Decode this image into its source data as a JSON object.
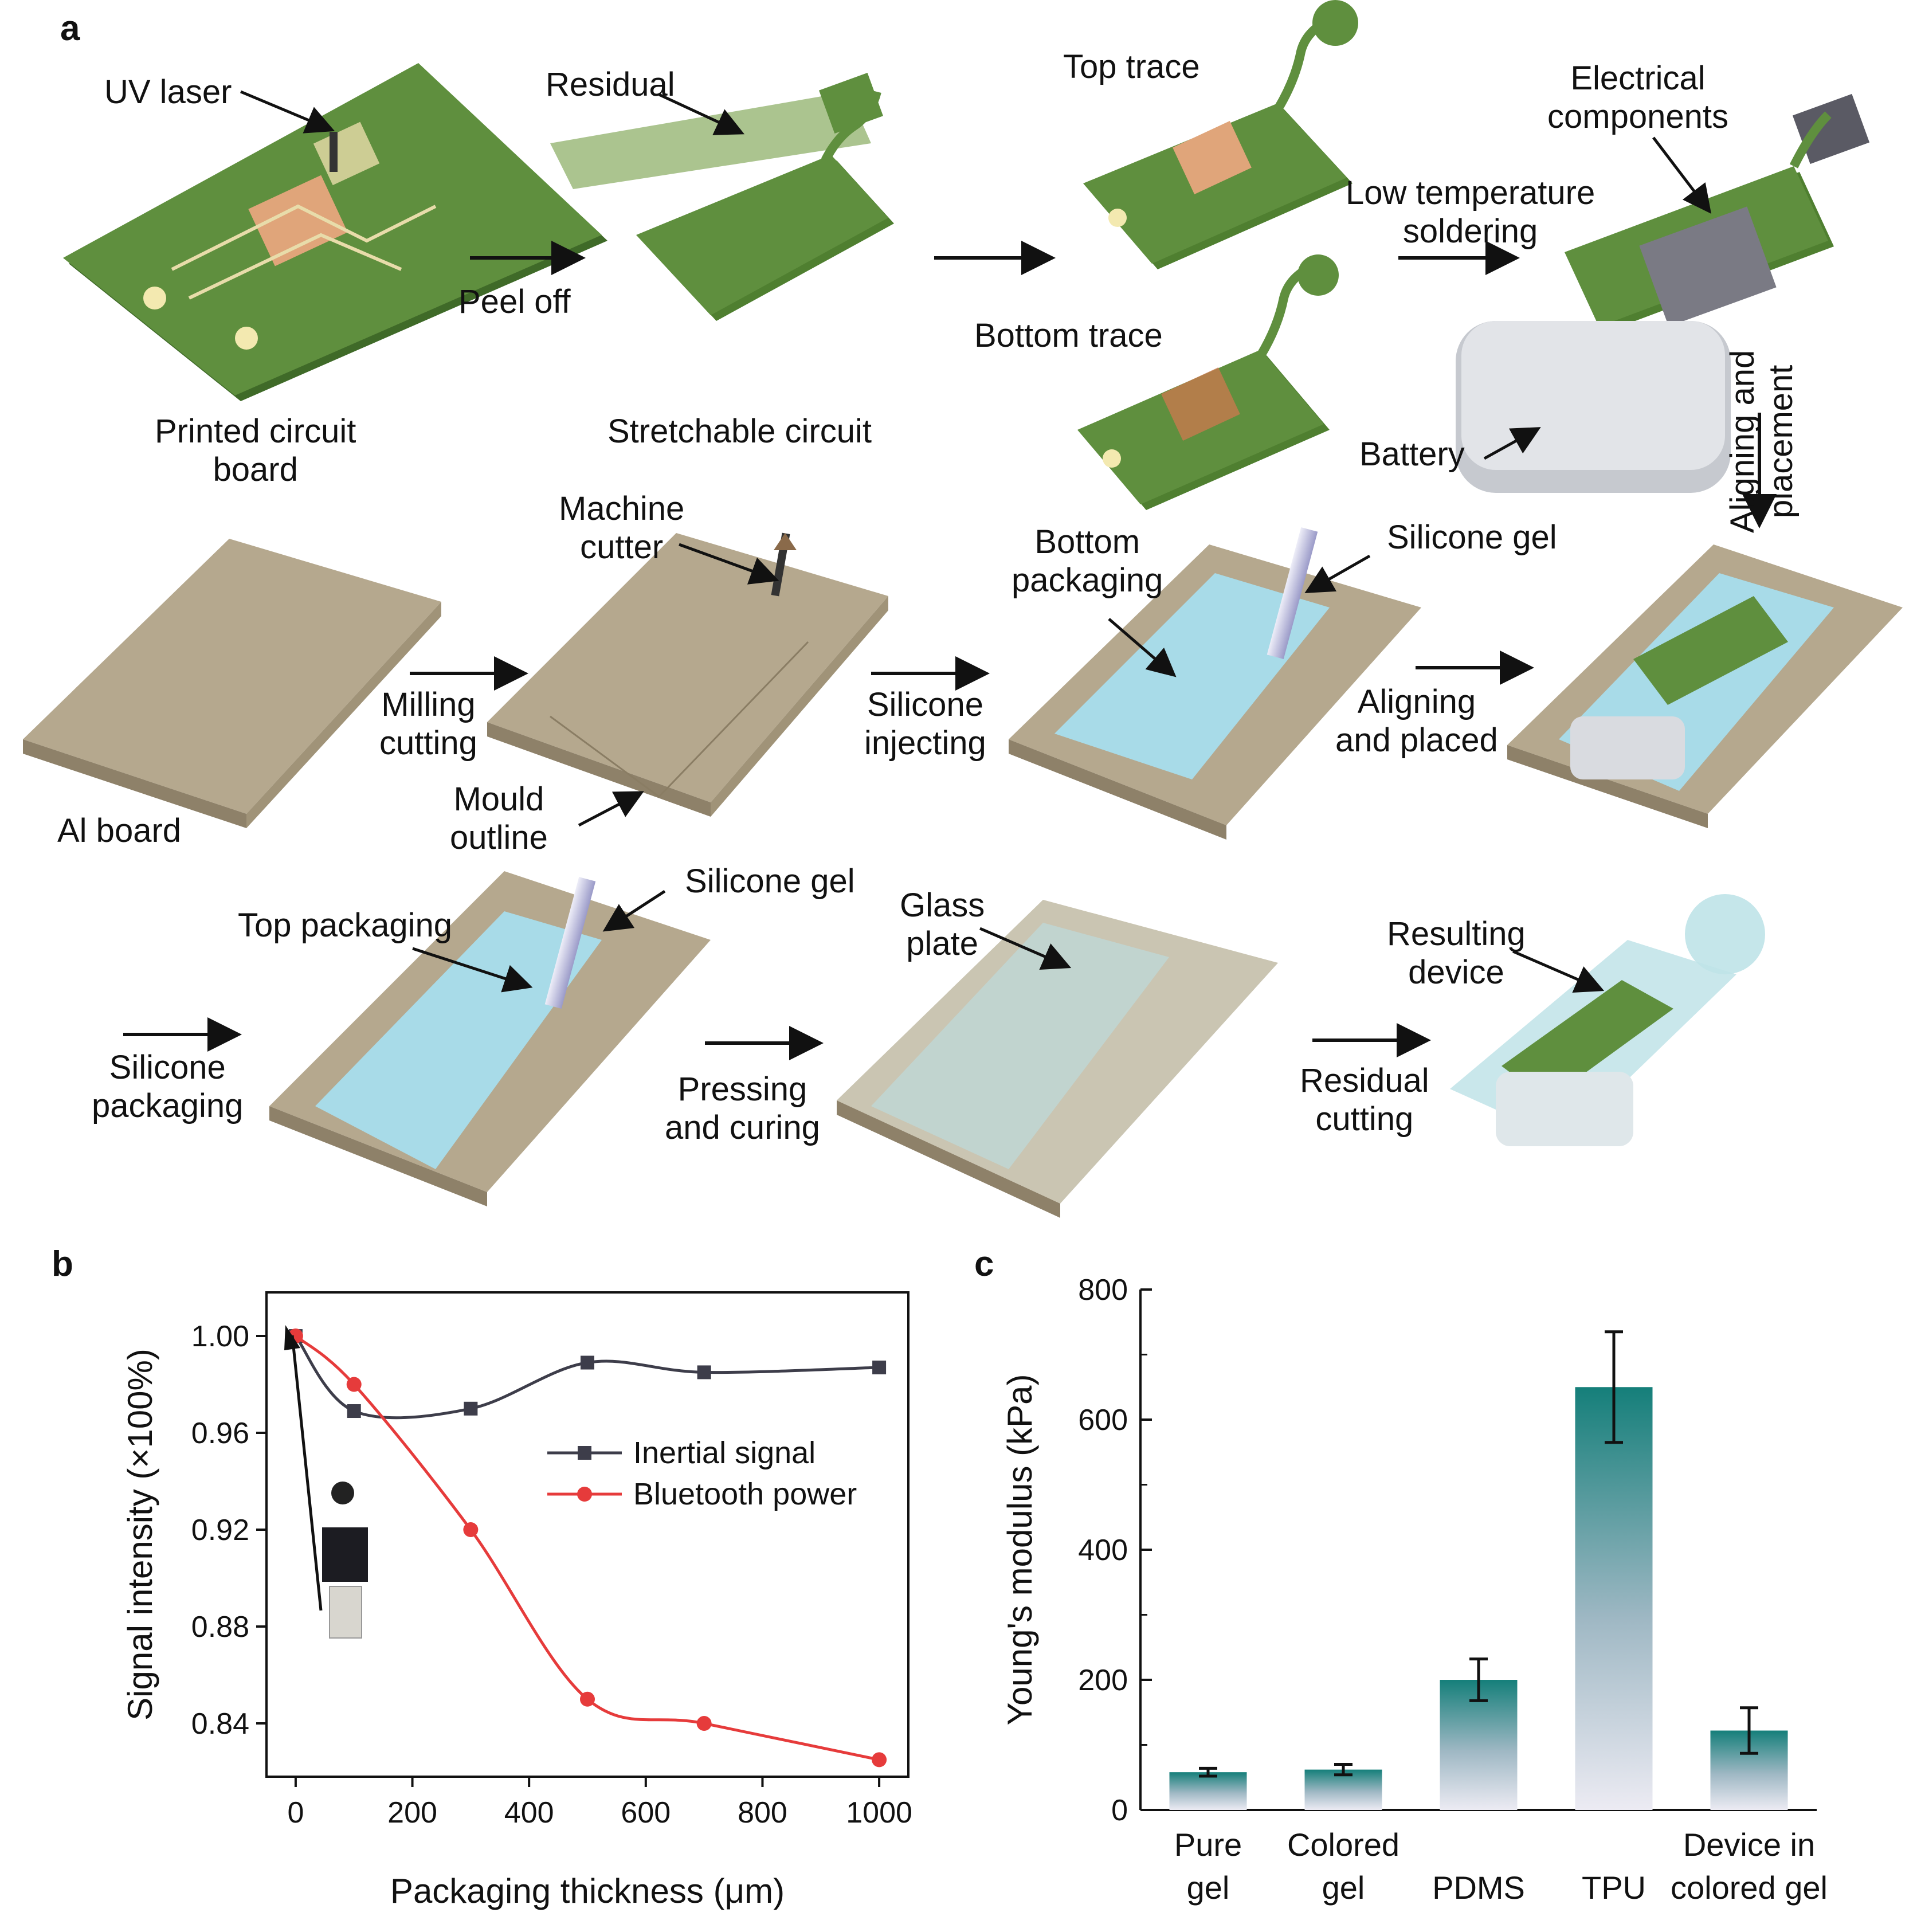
{
  "panel_a": {
    "letter": "a",
    "labels": {
      "uv_laser": "UV laser",
      "printed_circuit_board": "Printed circuit\nboard",
      "peel_off": "Peel off",
      "residual": "Residual",
      "stretchable_circuit": "Stretchable circuit",
      "top_trace": "Top trace",
      "bottom_trace": "Bottom trace",
      "electrical_components": "Electrical\ncomponents",
      "low_temperature_soldering": "Low temperature\nsoldering",
      "battery": "Battery",
      "aligning_and_placement": "Aligning and\nplacement",
      "al_board": "Al board",
      "machine_cutter": "Machine\ncutter",
      "milling_cutting": "Milling\ncutting",
      "mould_outline": "Mould\noutline",
      "bottom_packaging": "Bottom\npackaging",
      "silicone_gel_1": "Silicone gel",
      "silicone_injecting": "Silicone\ninjecting",
      "aligning_and_placed": "Aligning\nand placed",
      "top_packaging": "Top packaging",
      "silicone_gel_2": "Silicone gel",
      "silicone_packaging": "Silicone\npackaging",
      "glass_plate": "Glass\nplate",
      "pressing_and_curing": "Pressing\nand curing",
      "resulting_device": "Resulting\ndevice",
      "residual_cutting": "Residual\ncutting"
    }
  },
  "colors": {
    "pcb_green": "#5f8f3e",
    "pcb_dark": "#3f6a28",
    "copper": "#e0a57a",
    "trace": "#e8dcaa",
    "al_board": "#b5a88e",
    "al_side": "#8e8169",
    "silicone": "#a8dbe8",
    "glass": "#d8d8cc",
    "inertial": "#3d3d4a",
    "bluetooth": "#e63b3b",
    "bar_top": "#157f7a"
  },
  "chart_data": [
    {
      "panel": "b",
      "type": "line",
      "xlabel": "Packaging thickness (μm)",
      "ylabel": "Signal intensity (×100%)",
      "xlim": [
        -50,
        1050
      ],
      "ylim": [
        0.818,
        1.018
      ],
      "xticks": [
        0,
        200,
        400,
        600,
        800,
        1000
      ],
      "yticks": [
        0.84,
        0.88,
        0.92,
        0.96,
        1.0
      ],
      "ytick_labels": [
        "0.84",
        "0.88",
        "0.92",
        "0.96",
        "1.00"
      ],
      "legend_position": "right",
      "series": [
        {
          "name": "Inertial signal",
          "marker": "square",
          "color": "#3d3d4a",
          "x": [
            0,
            100,
            300,
            500,
            700,
            1000
          ],
          "y": [
            1.0,
            0.969,
            0.97,
            0.989,
            0.985,
            0.987
          ]
        },
        {
          "name": "Bluetooth power",
          "marker": "circle",
          "color": "#e63b3b",
          "x": [
            0,
            100,
            300,
            500,
            700,
            1000
          ],
          "y": [
            1.0,
            0.98,
            0.92,
            0.85,
            0.84,
            0.825
          ]
        }
      ]
    },
    {
      "panel": "c",
      "type": "bar",
      "ylabel": "Young's modulus (kPa)",
      "ylim": [
        0,
        800
      ],
      "yticks": [
        0,
        200,
        400,
        600,
        800
      ],
      "categories": [
        "Pure\ngel",
        "Colored\ngel",
        "PDMS",
        "TPU",
        "Device in\ncolored gel"
      ],
      "values": [
        58,
        62,
        200,
        650,
        122
      ],
      "errors": [
        6,
        8,
        32,
        85,
        35
      ]
    }
  ]
}
